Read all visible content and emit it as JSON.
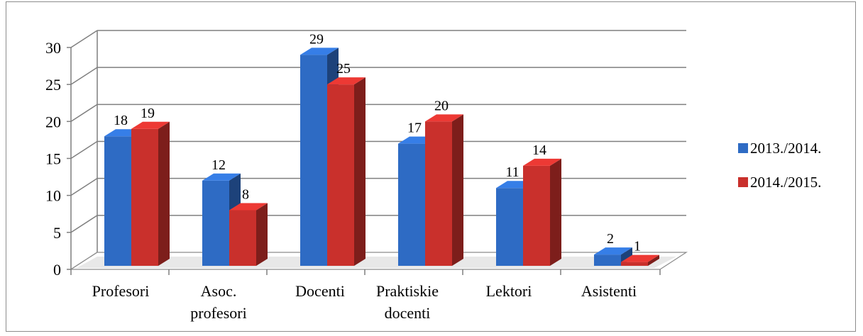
{
  "chart_data": {
    "type": "bar",
    "categories": [
      [
        "Profesori"
      ],
      [
        "Asoc.",
        "profesori"
      ],
      [
        "Docenti"
      ],
      [
        "Praktiskie",
        "docenti"
      ],
      [
        "Lektori"
      ],
      [
        "Asistenti"
      ]
    ],
    "series": [
      {
        "name": "2013./2014.",
        "color": "#2e6bc4",
        "values": [
          18,
          12,
          29,
          17,
          11,
          2
        ]
      },
      {
        "name": "2014./2015.",
        "color": "#c9302c",
        "values": [
          19,
          8,
          25,
          20,
          14,
          1
        ]
      }
    ],
    "y_ticks": [
      "0",
      "5",
      "10",
      "15",
      "20",
      "25",
      "30"
    ],
    "ylim": [
      0,
      30
    ],
    "grid": true,
    "legend_position": "right",
    "style": "3d-clustered-column"
  }
}
